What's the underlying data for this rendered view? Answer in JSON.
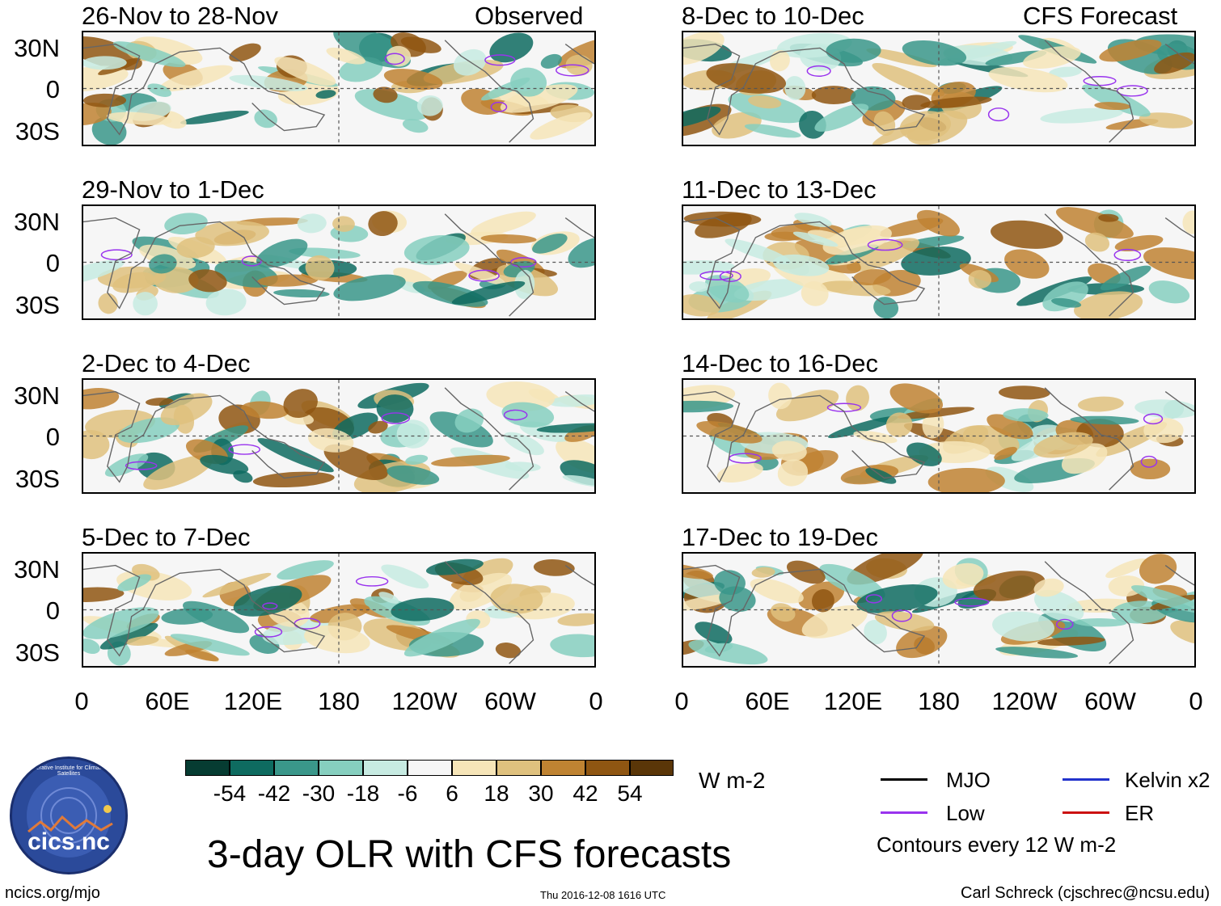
{
  "header": {
    "observed_label": "Observed",
    "forecast_label": "CFS Forecast"
  },
  "panels_left": [
    {
      "title": "26-Nov to 28-Nov"
    },
    {
      "title": "29-Nov to 1-Dec"
    },
    {
      "title": "2-Dec to 4-Dec"
    },
    {
      "title": "5-Dec to 7-Dec"
    }
  ],
  "panels_right": [
    {
      "title": "8-Dec to 10-Dec"
    },
    {
      "title": "11-Dec to 13-Dec"
    },
    {
      "title": "14-Dec to 16-Dec"
    },
    {
      "title": "17-Dec to 19-Dec"
    }
  ],
  "y_ticks": [
    "30N",
    "0",
    "30S"
  ],
  "x_ticks": [
    "0",
    "60E",
    "120E",
    "180",
    "120W",
    "60W",
    "0"
  ],
  "colorbar": {
    "unit": "W m-2",
    "labels": [
      "-54",
      "-42",
      "-30",
      "-18",
      "-6",
      "6",
      "18",
      "30",
      "42",
      "54"
    ],
    "colors": [
      "#063c32",
      "#0e6b60",
      "#3a978a",
      "#86cfbf",
      "#c7ebe2",
      "#f6f6f6",
      "#f6e5b8",
      "#dfc17e",
      "#bf8332",
      "#8f5612",
      "#5a3608"
    ]
  },
  "legend": {
    "mjo": "MJO",
    "kelvin": "Kelvin x2",
    "low": "Low",
    "er": "ER",
    "contours": "Contours every 12 W m-2",
    "colors": {
      "mjo": "#000000",
      "kelvin": "#2233cc",
      "low": "#9933ee",
      "er": "#cc1111"
    }
  },
  "main_title": "3-day OLR with CFS forecasts",
  "logo_text": "cics.nc",
  "logo_ring_text": "Cooperative Institute for Climate and Satellites",
  "footer": {
    "left": "ncics.org/mjo",
    "center": "Thu 2016-12-08 1616 UTC",
    "right": "Carl Schreck (cjschrec@ncsu.edu)"
  }
}
